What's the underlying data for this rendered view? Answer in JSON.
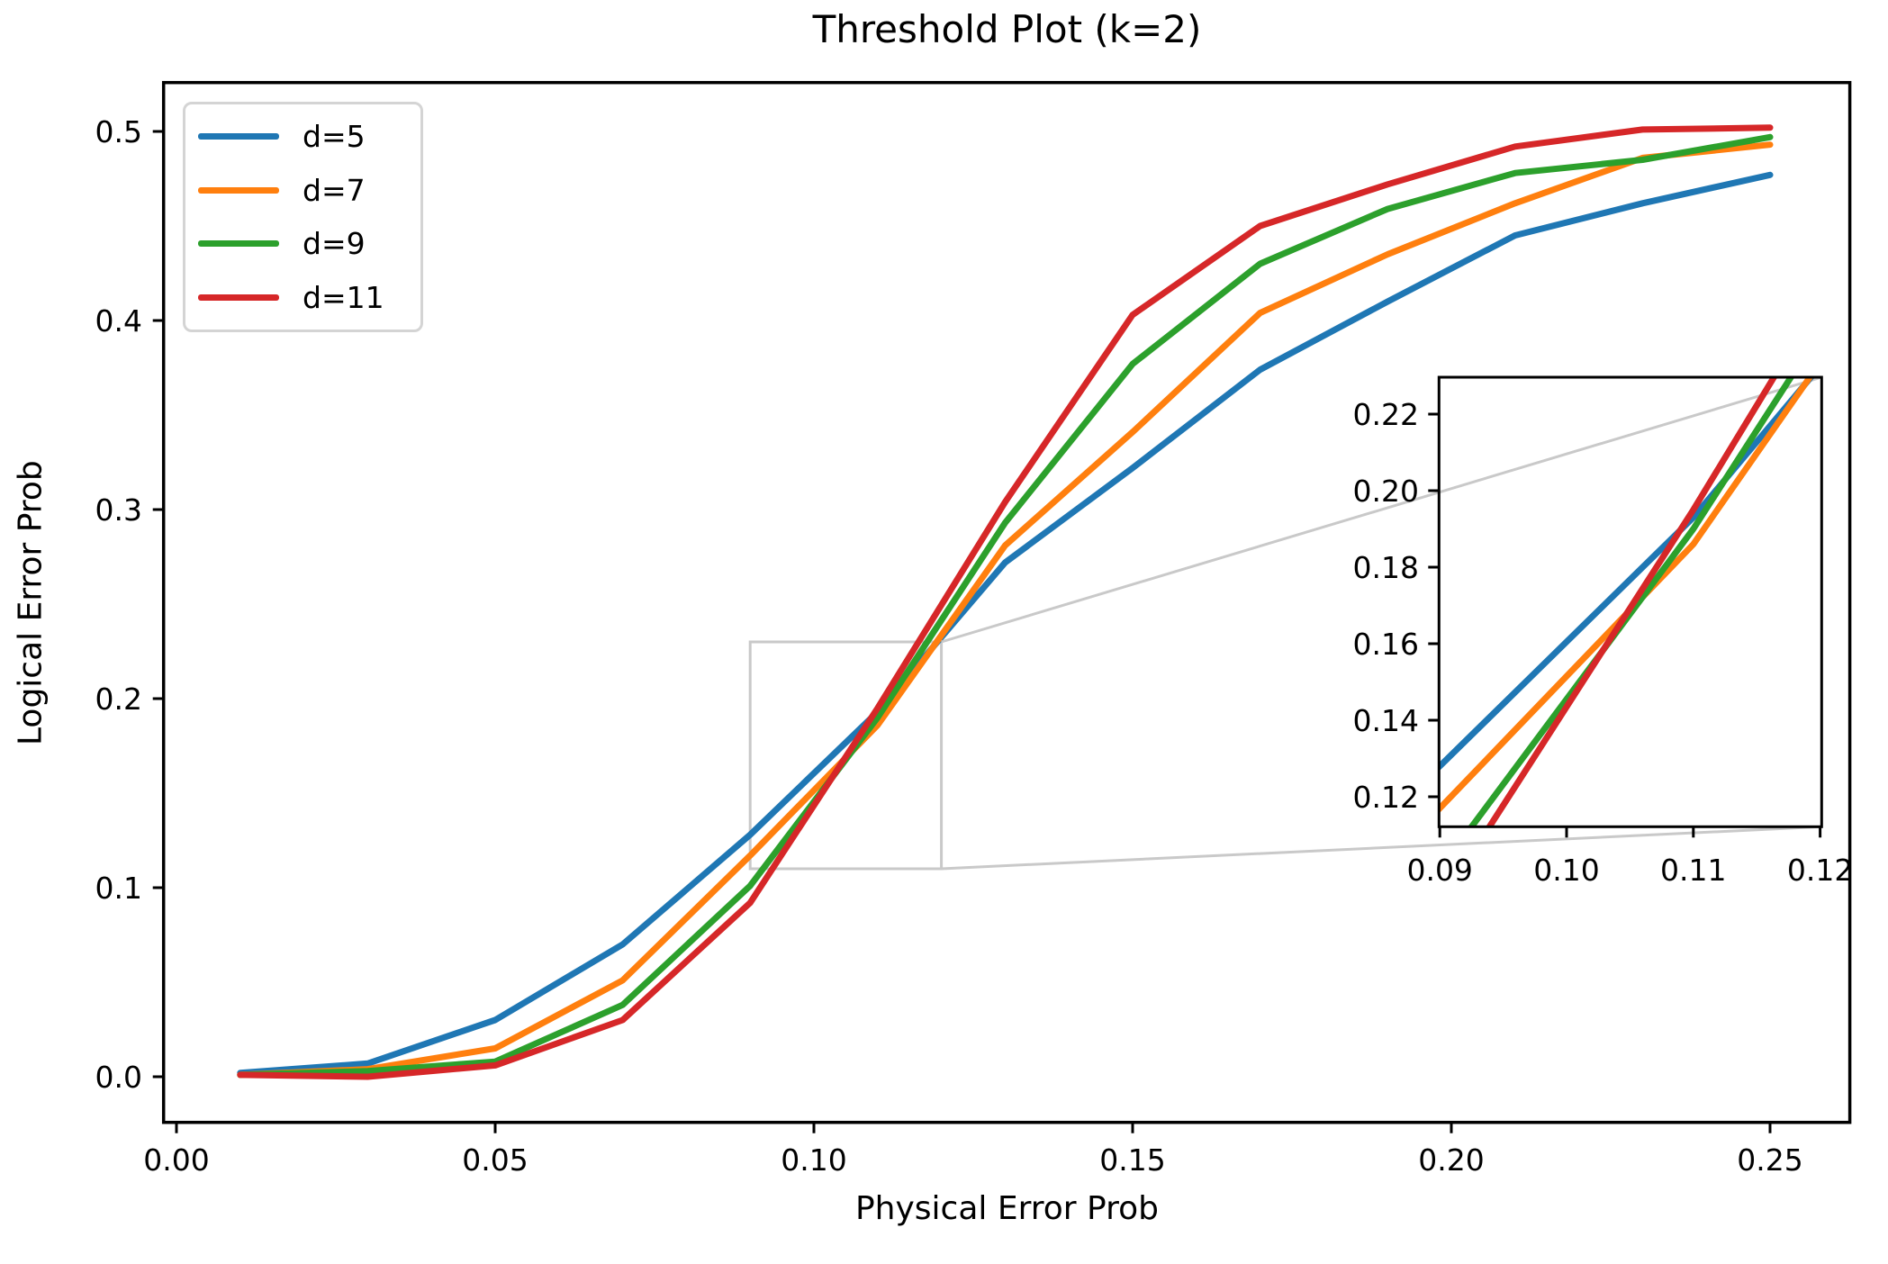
{
  "title": "Threshold Plot (k=2)",
  "chart_data": {
    "type": "line",
    "title": "Threshold Plot (k=2)",
    "xlabel": "Physical Error Prob",
    "ylabel": "Logical Error Prob",
    "grid": false,
    "x": [
      0.01,
      0.03,
      0.05,
      0.07,
      0.09,
      0.11,
      0.13,
      0.15,
      0.17,
      0.19,
      0.21,
      0.23,
      0.25
    ],
    "series": [
      {
        "name": "d=5",
        "color": "#1f77b4",
        "values": [
          0.002,
          0.007,
          0.03,
          0.07,
          0.128,
          0.193,
          0.272,
          0.322,
          0.374,
          0.41,
          0.445,
          0.462,
          0.477
        ]
      },
      {
        "name": "d=7",
        "color": "#ff7f0e",
        "values": [
          0.001,
          0.004,
          0.015,
          0.051,
          0.117,
          0.186,
          0.281,
          0.341,
          0.404,
          0.435,
          0.462,
          0.486,
          0.493
        ]
      },
      {
        "name": "d=9",
        "color": "#2ca02c",
        "values": [
          0.001,
          0.003,
          0.008,
          0.038,
          0.101,
          0.19,
          0.293,
          0.377,
          0.43,
          0.459,
          0.478,
          0.485,
          0.497
        ]
      },
      {
        "name": "d=11",
        "color": "#d62728",
        "values": [
          0.001,
          0.0,
          0.006,
          0.03,
          0.092,
          0.195,
          0.304,
          0.403,
          0.45,
          0.472,
          0.492,
          0.501,
          0.502
        ]
      }
    ],
    "legend": {
      "position": "upper left",
      "entries": [
        "d=5",
        "d=7",
        "d=9",
        "d=11"
      ]
    },
    "main_axes": {
      "xlim": [
        -0.002,
        0.2625
      ],
      "ylim": [
        -0.024,
        0.526
      ],
      "xticks": [
        0.0,
        0.05,
        0.1,
        0.15,
        0.2,
        0.25
      ],
      "xtick_labels": [
        "0.00",
        "0.05",
        "0.10",
        "0.15",
        "0.20",
        "0.25"
      ],
      "yticks": [
        0.0,
        0.1,
        0.2,
        0.3,
        0.4,
        0.5
      ],
      "ytick_labels": [
        "0.0",
        "0.1",
        "0.2",
        "0.3",
        "0.4",
        "0.5"
      ]
    },
    "inset_axes": {
      "xlim": [
        0.09,
        0.1201
      ],
      "ylim": [
        0.1122,
        0.2296
      ],
      "xticks": [
        0.09,
        0.1,
        0.11,
        0.12
      ],
      "xtick_labels": [
        "0.09",
        "0.10",
        "0.11",
        "0.12"
      ],
      "yticks": [
        0.12,
        0.14,
        0.16,
        0.18,
        0.2,
        0.22
      ],
      "ytick_labels": [
        "0.12",
        "0.14",
        "0.16",
        "0.18",
        "0.20",
        "0.22"
      ]
    },
    "zoom_region": {
      "x": [
        0.09,
        0.12
      ],
      "y": [
        0.11,
        0.23
      ]
    },
    "style_colors": {
      "spine": "#000000",
      "zoom_box_and_connectors": "#c9c9c9",
      "legend_border": "#d4d4d4",
      "background": "#ffffff"
    }
  }
}
